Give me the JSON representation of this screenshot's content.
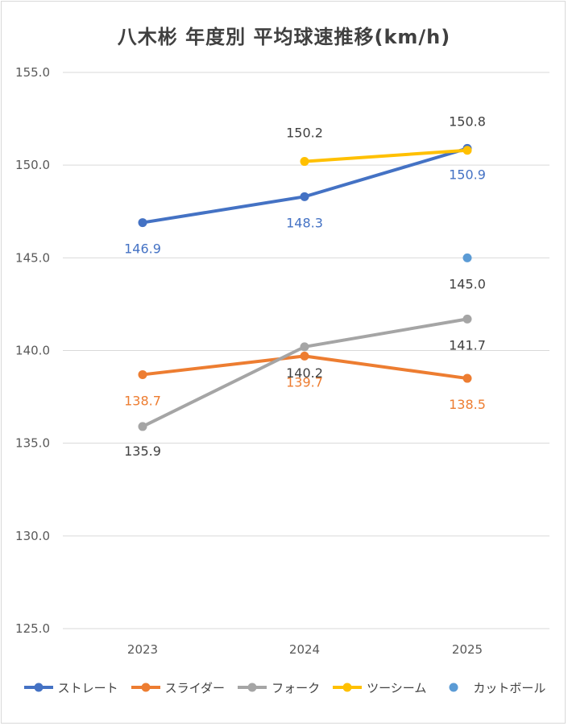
{
  "chart_data": {
    "type": "line",
    "title": "八木彬 年度別 平均球速推移(km/h)",
    "xlabel": "",
    "ylabel": "",
    "categories": [
      "2023",
      "2024",
      "2025"
    ],
    "ylim": [
      125,
      155
    ],
    "yticks": [
      "125.0",
      "130.0",
      "135.0",
      "140.0",
      "145.0",
      "150.0",
      "155.0"
    ],
    "grid": true,
    "legend_position": "bottom",
    "series": [
      {
        "name": "ストレート",
        "color": "#4472c4",
        "values": [
          146.9,
          148.3,
          150.9
        ],
        "labels": [
          "146.9",
          "148.3",
          "150.9"
        ]
      },
      {
        "name": "スライダー",
        "color": "#ed7d31",
        "values": [
          138.7,
          139.7,
          138.5
        ],
        "labels": [
          "138.7",
          "139.7",
          "138.5"
        ]
      },
      {
        "name": "フォーク",
        "color": "#a5a5a5",
        "values": [
          135.9,
          140.2,
          141.7
        ],
        "labels": [
          "135.9",
          "140.2",
          "141.7"
        ]
      },
      {
        "name": "ツーシーム",
        "color": "#ffc000",
        "values": [
          null,
          150.2,
          150.8
        ],
        "labels": [
          null,
          "150.2",
          "150.8"
        ]
      },
      {
        "name": "カットボール",
        "color": "#5b9bd5",
        "values": [
          null,
          null,
          145.0
        ],
        "labels": [
          null,
          null,
          "145.0"
        ]
      }
    ]
  }
}
